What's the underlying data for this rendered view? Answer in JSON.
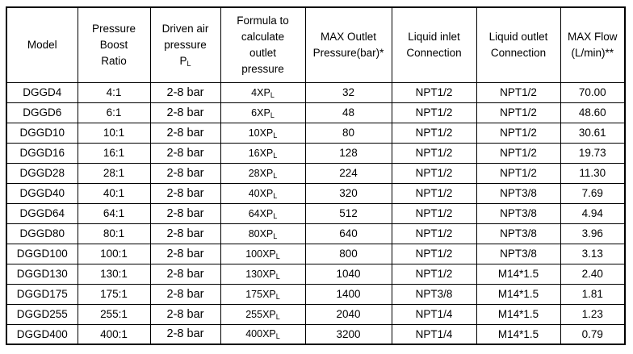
{
  "colors": {
    "background": "#ffffff",
    "border": "#000000",
    "text": "#000000"
  },
  "table": {
    "columns": [
      {
        "id": "model",
        "lines": [
          "Model"
        ]
      },
      {
        "id": "ratio",
        "lines": [
          "Pressure",
          "Boost",
          "Ratio"
        ]
      },
      {
        "id": "driven-air",
        "lines": [
          "Driven air",
          "pressure"
        ],
        "sub_line": {
          "base": "P",
          "sub": "L"
        }
      },
      {
        "id": "formula",
        "lines": [
          "Formula to",
          "calculate",
          "outlet",
          "pressure"
        ]
      },
      {
        "id": "max-outlet",
        "lines": [
          "MAX Outlet",
          "Pressure(bar)*"
        ]
      },
      {
        "id": "inlet",
        "lines": [
          "Liquid inlet",
          "Connection"
        ]
      },
      {
        "id": "outlet",
        "lines": [
          "Liquid outlet",
          "Connection"
        ]
      },
      {
        "id": "max-flow",
        "lines": [
          "MAX Flow",
          "(L/min)**"
        ]
      }
    ],
    "rows": [
      {
        "model": "DGGD4",
        "ratio": "4:1",
        "driven_air": "2-8 bar",
        "formula": {
          "base": "4XP",
          "sub": "L"
        },
        "max_outlet": "32",
        "inlet": "NPT1/2",
        "outlet": "NPT1/2",
        "max_flow": "70.00"
      },
      {
        "model": "DGGD6",
        "ratio": "6:1",
        "driven_air": "2-8 bar",
        "formula": {
          "base": "6XP",
          "sub": "L"
        },
        "max_outlet": "48",
        "inlet": "NPT1/2",
        "outlet": "NPT1/2",
        "max_flow": "48.60"
      },
      {
        "model": "DGGD10",
        "ratio": "10:1",
        "driven_air": "2-8 bar",
        "formula": {
          "base": "10XP",
          "sub": "L"
        },
        "max_outlet": "80",
        "inlet": "NPT1/2",
        "outlet": "NPT1/2",
        "max_flow": "30.61"
      },
      {
        "model": "DGGD16",
        "ratio": "16:1",
        "driven_air": "2-8 bar",
        "formula": {
          "base": "16XP",
          "sub": "L"
        },
        "max_outlet": "128",
        "inlet": "NPT1/2",
        "outlet": "NPT1/2",
        "max_flow": "19.73"
      },
      {
        "model": "DGGD28",
        "ratio": "28:1",
        "driven_air": "2-8 bar",
        "formula": {
          "base": "28XP",
          "sub": "L"
        },
        "max_outlet": "224",
        "inlet": "NPT1/2",
        "outlet": "NPT1/2",
        "max_flow": "11.30"
      },
      {
        "model": "DGGD40",
        "ratio": "40:1",
        "driven_air": "2-8 bar",
        "formula": {
          "base": "40XP",
          "sub": "L"
        },
        "max_outlet": "320",
        "inlet": "NPT1/2",
        "outlet": "NPT3/8",
        "max_flow": "7.69"
      },
      {
        "model": "DGGD64",
        "ratio": "64:1",
        "driven_air": "2-8 bar",
        "formula": {
          "base": "64XP",
          "sub": "L"
        },
        "max_outlet": "512",
        "inlet": "NPT1/2",
        "outlet": "NPT3/8",
        "max_flow": "4.94"
      },
      {
        "model": "DGGD80",
        "ratio": "80:1",
        "driven_air": "2-8 bar",
        "formula": {
          "base": "80XP",
          "sub": "L"
        },
        "max_outlet": "640",
        "inlet": "NPT1/2",
        "outlet": "NPT3/8",
        "max_flow": "3.96"
      },
      {
        "model": "DGGD100",
        "ratio": "100:1",
        "driven_air": "2-8 bar",
        "formula": {
          "base": "100XP",
          "sub": "L"
        },
        "max_outlet": "800",
        "inlet": "NPT1/2",
        "outlet": "NPT3/8",
        "max_flow": "3.13"
      },
      {
        "model": "DGGD130",
        "ratio": "130:1",
        "driven_air": "2-8 bar",
        "formula": {
          "base": "130XP",
          "sub": "L"
        },
        "max_outlet": "1040",
        "inlet": "NPT1/2",
        "outlet": "M14*1.5",
        "max_flow": "2.40"
      },
      {
        "model": "DGGD175",
        "ratio": "175:1",
        "driven_air": "2-8 bar",
        "formula": {
          "base": "175XP",
          "sub": "L"
        },
        "max_outlet": "1400",
        "inlet": "NPT3/8",
        "outlet": "M14*1.5",
        "max_flow": "1.81"
      },
      {
        "model": "DGGD255",
        "ratio": "255:1",
        "driven_air": "2-8 bar",
        "formula": {
          "base": "255XP",
          "sub": "L"
        },
        "max_outlet": "2040",
        "inlet": "NPT1/4",
        "outlet": "M14*1.5",
        "max_flow": "1.23"
      },
      {
        "model": "DGGD400",
        "ratio": "400:1",
        "driven_air": "2-8 bar",
        "formula": {
          "base": "400XP",
          "sub": "L"
        },
        "max_outlet": "3200",
        "inlet": "NPT1/4",
        "outlet": "M14*1.5",
        "max_flow": "0.79"
      }
    ]
  }
}
